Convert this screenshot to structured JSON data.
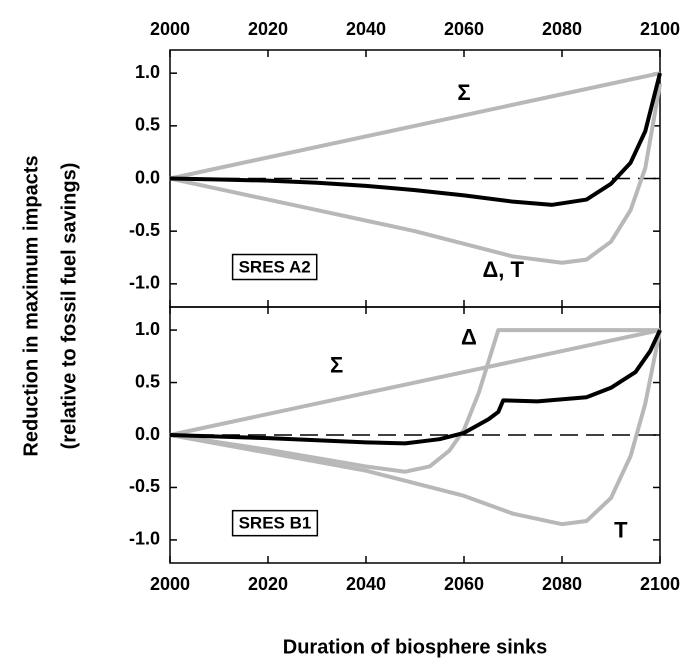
{
  "chart_data": [
    {
      "type": "line",
      "panel": "top",
      "y_label": [
        "Reduction in maximum impacts",
        "(relative to fossil fuel savings)"
      ],
      "xlim": [
        2000,
        2100
      ],
      "xticks": [
        2000,
        2020,
        2040,
        2060,
        2080,
        2100
      ],
      "ylim": [
        -1.22,
        1.22
      ],
      "yticks": [
        {
          "value": -1,
          "label": "-1.0"
        },
        -0.5,
        {
          "value": 0,
          "label": "0.0"
        },
        0.5,
        {
          "value": 1,
          "label": "1.0"
        }
      ],
      "reference_line": 0,
      "annotations": [
        "Σ",
        "Δ, T",
        "SRES A2"
      ],
      "series": [
        {
          "color": "#b8b8b8",
          "x": [
            2000,
            2100
          ],
          "values": [
            0,
            1
          ]
        },
        {
          "color": "#b8b8b8",
          "x": [
            2000,
            2010,
            2020,
            2030,
            2040,
            2050,
            2060,
            2070,
            2080,
            2085,
            2090,
            2094,
            2097,
            2100
          ],
          "values": [
            0,
            -0.1,
            -0.2,
            -0.3,
            -0.4,
            -0.5,
            -0.62,
            -0.74,
            -0.8,
            -0.77,
            -0.6,
            -0.3,
            0.1,
            0.9
          ]
        },
        {
          "color": "#000000",
          "x": [
            2000,
            2010,
            2020,
            2030,
            2040,
            2050,
            2060,
            2070,
            2078,
            2085,
            2090,
            2094,
            2097,
            2100
          ],
          "values": [
            0,
            -0.01,
            -0.02,
            -0.04,
            -0.07,
            -0.11,
            -0.16,
            -0.22,
            -0.25,
            -0.2,
            -0.05,
            0.15,
            0.45,
            1
          ]
        }
      ]
    },
    {
      "type": "line",
      "panel": "bottom",
      "x_label": "Duration of biosphere sinks",
      "xlim": [
        2000,
        2100
      ],
      "xticks": [
        2000,
        2020,
        2040,
        2060,
        2080,
        2100
      ],
      "ylim": [
        -1.22,
        1.22
      ],
      "yticks": [
        {
          "value": -1,
          "label": "-1.0"
        },
        -0.5,
        {
          "value": 0,
          "label": "0.0"
        },
        0.5,
        {
          "value": 1,
          "label": "1.0"
        }
      ],
      "reference_line": 0,
      "annotations": [
        "Σ",
        "Δ",
        "T",
        "SRES B1"
      ],
      "series": [
        {
          "color": "#b8b8b8",
          "x": [
            2000,
            2100
          ],
          "values": [
            0,
            1
          ]
        },
        {
          "color": "#b8b8b8",
          "x": [
            2000,
            2010,
            2020,
            2030,
            2040,
            2048,
            2053,
            2057,
            2060,
            2063,
            2065,
            2067,
            2068,
            2100
          ],
          "values": [
            0,
            -0.07,
            -0.14,
            -0.22,
            -0.3,
            -0.35,
            -0.3,
            -0.15,
            0.05,
            0.4,
            0.7,
            1,
            1,
            1
          ]
        },
        {
          "color": "#b8b8b8",
          "x": [
            2000,
            2020,
            2040,
            2060,
            2070,
            2080,
            2085,
            2090,
            2094,
            2097,
            2100
          ],
          "values": [
            0,
            -0.17,
            -0.34,
            -0.58,
            -0.75,
            -0.85,
            -0.82,
            -0.6,
            -0.2,
            0.3,
            1
          ]
        },
        {
          "color": "#000000",
          "x": [
            2000,
            2020,
            2040,
            2048,
            2055,
            2060,
            2065,
            2067,
            2068,
            2075,
            2085,
            2090,
            2095,
            2098,
            2100
          ],
          "values": [
            0,
            -0.03,
            -0.07,
            -0.08,
            -0.04,
            0.02,
            0.15,
            0.22,
            0.33,
            0.32,
            0.36,
            0.45,
            0.6,
            0.8,
            1
          ]
        }
      ]
    }
  ]
}
